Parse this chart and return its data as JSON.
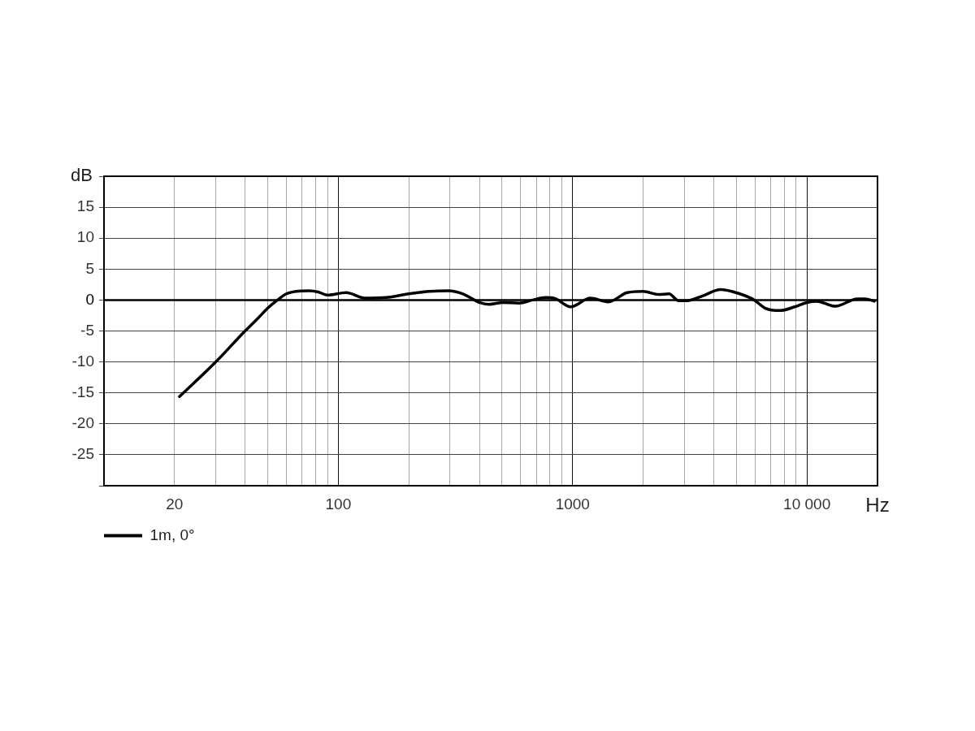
{
  "chart_data": {
    "type": "line",
    "xlabel": "Hz",
    "ylabel": "dB",
    "x": [
      21,
      30,
      40,
      45,
      50,
      55,
      60,
      66,
      75,
      82,
      90,
      108,
      130,
      160,
      200,
      245,
      295,
      340,
      400,
      440,
      505,
      590,
      675,
      770,
      835,
      980,
      1190,
      1420,
      1710,
      2000,
      2320,
      2580,
      2830,
      3070,
      3600,
      4270,
      5080,
      5960,
      6620,
      7670,
      8870,
      10000,
      11000,
      13200,
      16400,
      17700,
      19400
    ],
    "series": [
      {
        "name": "1m, 0°",
        "color": "#000000",
        "values": [
          -15.6,
          -10,
          -5,
          -3.1,
          -1.3,
          0,
          1.0,
          1.4,
          1.5,
          1.3,
          0.8,
          1.2,
          0.3,
          0.4,
          1.0,
          1.4,
          1.5,
          1.0,
          -0.4,
          -0.7,
          -0.4,
          -0.5,
          0,
          0.4,
          0.3,
          -1.1,
          0.3,
          -0.3,
          1.2,
          1.4,
          0.9,
          1.0,
          -0.1,
          -0.1,
          0.7,
          1.7,
          1.1,
          0,
          -1.3,
          -1.7,
          -1.1,
          -0.4,
          -0.2,
          -1.0,
          0.2,
          0.2,
          -0.2
        ]
      }
    ],
    "log": "x",
    "xlim": [
      10,
      20000
    ],
    "ylim": [
      -30,
      20
    ],
    "xticks": [
      20,
      {
        "value": 30,
        "label": null
      },
      {
        "value": 40,
        "label": null
      },
      {
        "value": 50,
        "label": null
      },
      {
        "value": 60,
        "label": null
      },
      {
        "value": 70,
        "label": null
      },
      {
        "value": 80,
        "label": null
      },
      {
        "value": 90,
        "label": null
      },
      100,
      {
        "value": 200,
        "label": null
      },
      {
        "value": 300,
        "label": null
      },
      {
        "value": 400,
        "label": null
      },
      {
        "value": 500,
        "label": null
      },
      {
        "value": 600,
        "label": null
      },
      {
        "value": 700,
        "label": null
      },
      {
        "value": 800,
        "label": null
      },
      {
        "value": 900,
        "label": null
      },
      1000,
      {
        "value": 2000,
        "label": null
      },
      {
        "value": 3000,
        "label": null
      },
      {
        "value": 4000,
        "label": null
      },
      {
        "value": 5000,
        "label": null
      },
      {
        "value": 6000,
        "label": null
      },
      {
        "value": 7000,
        "label": null
      },
      {
        "value": 8000,
        "label": null
      },
      {
        "value": 9000,
        "label": null
      },
      {
        "value": 10000,
        "label": "10 000"
      }
    ],
    "yticks": [
      {
        "value": 20,
        "label": null
      },
      15,
      10,
      5,
      0,
      -5,
      -10,
      -15,
      -20,
      -25,
      {
        "value": -30,
        "label": null
      }
    ],
    "grid": true,
    "legend": "bottom left",
    "ref_lines": [
      {
        "axis": "y",
        "value": 0,
        "color": "#000000"
      }
    ]
  }
}
